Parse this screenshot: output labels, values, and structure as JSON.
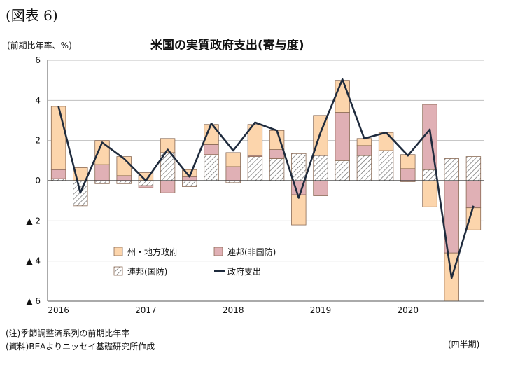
{
  "figure_label": "(図表 6)",
  "unit_label": "(前期比年率、%)",
  "period_label": "(四半期)",
  "notes": [
    "(注)季節調整済系列の前期比年率",
    "(資料)BEAよりニッセイ基礎研究所作成"
  ],
  "colors": {
    "state_local": "#fcd5ac",
    "federal_nondefense": "#e0b0b5",
    "federal_defense_hatch": "#6a6a6a",
    "total_line": "#1f2b3d",
    "bar_border": "#8a6a55"
  },
  "chart_data": {
    "type": "bar",
    "stacked": true,
    "title": "米国の実質政府支出(寄与度)",
    "xlabel": "",
    "ylabel": "",
    "ylim": [
      -6,
      6
    ],
    "yticks": [
      {
        "value": 6,
        "label": "6"
      },
      {
        "value": 4,
        "label": "4"
      },
      {
        "value": 2,
        "label": "2"
      },
      {
        "value": 0,
        "label": "0"
      },
      {
        "value": -2,
        "label": "▲ 2"
      },
      {
        "value": -4,
        "label": "▲ 4"
      },
      {
        "value": -6,
        "label": "▲ 6"
      }
    ],
    "grid": true,
    "legend_position": "lower-center",
    "categories": [
      "2016Q1",
      "2016Q2",
      "2016Q3",
      "2016Q4",
      "2017Q1",
      "2017Q2",
      "2017Q3",
      "2017Q4",
      "2018Q1",
      "2018Q2",
      "2018Q3",
      "2018Q4",
      "2019Q1",
      "2019Q2",
      "2019Q3",
      "2019Q4",
      "2020Q1",
      "2020Q2",
      "2020Q3",
      "2020Q4"
    ],
    "year_labels": [
      {
        "label": "2016",
        "start_index": 0
      },
      {
        "label": "2017",
        "start_index": 4
      },
      {
        "label": "2018",
        "start_index": 8
      },
      {
        "label": "2019",
        "start_index": 12
      },
      {
        "label": "2020",
        "start_index": 16
      }
    ],
    "series": [
      {
        "name": "連邦(国防)",
        "kind": "bar",
        "values": [
          0.1,
          -1.25,
          -0.15,
          -0.15,
          -0.25,
          1.4,
          -0.3,
          1.3,
          -0.1,
          1.2,
          1.1,
          1.35,
          1.25,
          1.0,
          1.25,
          1.5,
          -0.05,
          0.55,
          1.1,
          1.2
        ]
      },
      {
        "name": "連邦(非国防)",
        "kind": "bar",
        "values": [
          0.45,
          0.0,
          0.8,
          0.25,
          -0.1,
          -0.6,
          0.2,
          0.5,
          0.7,
          0.05,
          0.45,
          -0.7,
          -0.75,
          2.4,
          0.5,
          0.0,
          0.6,
          3.25,
          -3.6,
          -1.35
        ]
      },
      {
        "name": "州・地方政府",
        "kind": "bar",
        "values": [
          3.15,
          0.65,
          1.2,
          0.95,
          0.4,
          0.7,
          0.35,
          1.0,
          0.7,
          1.55,
          0.95,
          -1.5,
          2.0,
          1.6,
          0.35,
          0.9,
          0.7,
          -1.3,
          -2.4,
          -1.1
        ]
      },
      {
        "name": "政府支出",
        "kind": "line",
        "values": [
          3.7,
          -0.6,
          1.9,
          1.1,
          0.0,
          1.55,
          0.2,
          2.85,
          1.5,
          2.9,
          2.5,
          -0.85,
          2.4,
          5.05,
          2.1,
          2.4,
          1.25,
          2.55,
          -4.85,
          -1.25
        ]
      }
    ]
  }
}
